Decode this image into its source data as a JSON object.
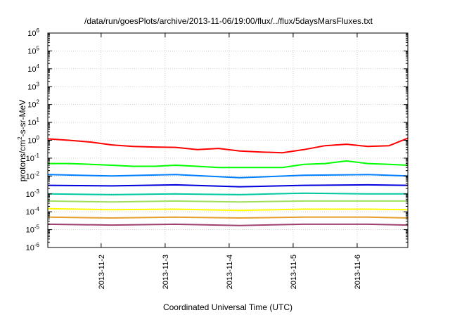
{
  "chart_data": {
    "type": "line",
    "title": "/data/run/goesPlots/archive/2013-11-06/19:00/flux/../flux/5daysMarsFluxes.txt",
    "xlabel": "Coordinated Universal Time (UTC)",
    "ylabel": "protons/cm2-s-sr-MeV",
    "ylabel_parts": {
      "before": "protons/cm",
      "sup": "2",
      "after": "-s-sr-MeV"
    },
    "y_scale": "log",
    "ylim": [
      1e-06,
      1000000.0
    ],
    "x_range": [
      "2013-11-01T04:00",
      "2013-11-06T19:00"
    ],
    "x_ticks": [
      "2013-11-2",
      "2013-11-3",
      "2013-11-4",
      "2013-11-5",
      "2013-11-6"
    ],
    "x_tick_dates": [
      "2013-11-02",
      "2013-11-03",
      "2013-11-04",
      "2013-11-05",
      "2013-11-06"
    ],
    "y_ticks": [
      {
        "base": "10",
        "exp": "-6",
        "value": 1e-06
      },
      {
        "base": "10",
        "exp": "-5",
        "value": 1e-05
      },
      {
        "base": "10",
        "exp": "-4",
        "value": 0.0001
      },
      {
        "base": "10",
        "exp": "-3",
        "value": 0.001
      },
      {
        "base": "10",
        "exp": "-2",
        "value": 0.01
      },
      {
        "base": "10",
        "exp": "-1",
        "value": 0.1
      },
      {
        "base": "10",
        "exp": "0",
        "value": 1
      },
      {
        "base": "10",
        "exp": "1",
        "value": 10
      },
      {
        "base": "10",
        "exp": "2",
        "value": 100
      },
      {
        "base": "10",
        "exp": "3",
        "value": 1000
      },
      {
        "base": "10",
        "exp": "4",
        "value": 10000
      },
      {
        "base": "10",
        "exp": "5",
        "value": 100000
      },
      {
        "base": "10",
        "exp": "6",
        "value": 1000000
      }
    ],
    "grid": true,
    "legend": "none",
    "series": [
      {
        "color": "#ff0000",
        "x": [
          "2013-11-01T04:00",
          "2013-11-01T12:00",
          "2013-11-01T20:00",
          "2013-11-02T04:00",
          "2013-11-02T12:00",
          "2013-11-02T20:00",
          "2013-11-03T04:00",
          "2013-11-03T12:00",
          "2013-11-03T20:00",
          "2013-11-04T04:00",
          "2013-11-04T12:00",
          "2013-11-04T20:00",
          "2013-11-05T04:00",
          "2013-11-05T12:00",
          "2013-11-05T20:00",
          "2013-11-06T04:00",
          "2013-11-06T12:00",
          "2013-11-06T19:00"
        ],
        "y": [
          1.2,
          1.0,
          0.8,
          0.55,
          0.45,
          0.42,
          0.4,
          0.3,
          0.35,
          0.25,
          0.22,
          0.2,
          0.3,
          0.5,
          0.6,
          0.45,
          0.5,
          1.3
        ]
      },
      {
        "color": "#00ff00",
        "x": [
          "2013-11-01T04:00",
          "2013-11-01T12:00",
          "2013-11-01T20:00",
          "2013-11-02T04:00",
          "2013-11-02T12:00",
          "2013-11-02T20:00",
          "2013-11-03T04:00",
          "2013-11-03T12:00",
          "2013-11-03T20:00",
          "2013-11-04T04:00",
          "2013-11-04T12:00",
          "2013-11-04T20:00",
          "2013-11-05T04:00",
          "2013-11-05T12:00",
          "2013-11-05T20:00",
          "2013-11-06T04:00",
          "2013-11-06T12:00",
          "2013-11-06T19:00"
        ],
        "y": [
          0.05,
          0.05,
          0.045,
          0.04,
          0.035,
          0.035,
          0.04,
          0.035,
          0.03,
          0.03,
          0.03,
          0.03,
          0.045,
          0.05,
          0.07,
          0.05,
          0.045,
          0.04
        ]
      },
      {
        "color": "#0080ff",
        "x": [
          "2013-11-01T04:00",
          "2013-11-02T04:00",
          "2013-11-03T04:00",
          "2013-11-04T04:00",
          "2013-11-05T04:00",
          "2013-11-06T04:00",
          "2013-11-06T19:00"
        ],
        "y": [
          0.012,
          0.01,
          0.012,
          0.008,
          0.011,
          0.012,
          0.01
        ]
      },
      {
        "color": "#0000dd",
        "x": [
          "2013-11-01T04:00",
          "2013-11-02T04:00",
          "2013-11-03T04:00",
          "2013-11-04T04:00",
          "2013-11-05T04:00",
          "2013-11-06T04:00",
          "2013-11-06T19:00"
        ],
        "y": [
          0.003,
          0.0028,
          0.0032,
          0.0025,
          0.003,
          0.0032,
          0.003
        ]
      },
      {
        "color": "#00c8a0",
        "x": [
          "2013-11-01T04:00",
          "2013-11-02T04:00",
          "2013-11-03T04:00",
          "2013-11-04T04:00",
          "2013-11-05T04:00",
          "2013-11-06T04:00",
          "2013-11-06T19:00"
        ],
        "y": [
          0.001,
          0.0009,
          0.001,
          0.0009,
          0.0011,
          0.001,
          0.001
        ]
      },
      {
        "color": "#a0e060",
        "x": [
          "2013-11-01T04:00",
          "2013-11-02T04:00",
          "2013-11-03T04:00",
          "2013-11-04T04:00",
          "2013-11-05T04:00",
          "2013-11-06T04:00",
          "2013-11-06T19:00"
        ],
        "y": [
          0.0004,
          0.00035,
          0.0004,
          0.00035,
          0.0004,
          0.0004,
          0.0004
        ]
      },
      {
        "color": "#ffff00",
        "x": [
          "2013-11-01T04:00",
          "2013-11-02T04:00",
          "2013-11-03T04:00",
          "2013-11-04T04:00",
          "2013-11-05T04:00",
          "2013-11-06T04:00",
          "2013-11-06T19:00"
        ],
        "y": [
          0.00015,
          0.00013,
          0.00014,
          0.00012,
          0.00014,
          0.00014,
          0.00013
        ]
      },
      {
        "color": "#e8a030",
        "x": [
          "2013-11-01T04:00",
          "2013-11-02T04:00",
          "2013-11-03T04:00",
          "2013-11-04T04:00",
          "2013-11-05T04:00",
          "2013-11-06T04:00",
          "2013-11-06T19:00"
        ],
        "y": [
          5e-05,
          4.5e-05,
          5e-05,
          4.5e-05,
          5e-05,
          5e-05,
          4.5e-05
        ]
      },
      {
        "color": "#a04070",
        "x": [
          "2013-11-01T04:00",
          "2013-11-02T04:00",
          "2013-11-03T04:00",
          "2013-11-04T04:00",
          "2013-11-05T04:00",
          "2013-11-06T04:00",
          "2013-11-06T19:00"
        ],
        "y": [
          2e-05,
          1.8e-05,
          2e-05,
          1.7e-05,
          2e-05,
          2e-05,
          1.8e-05
        ]
      }
    ]
  }
}
